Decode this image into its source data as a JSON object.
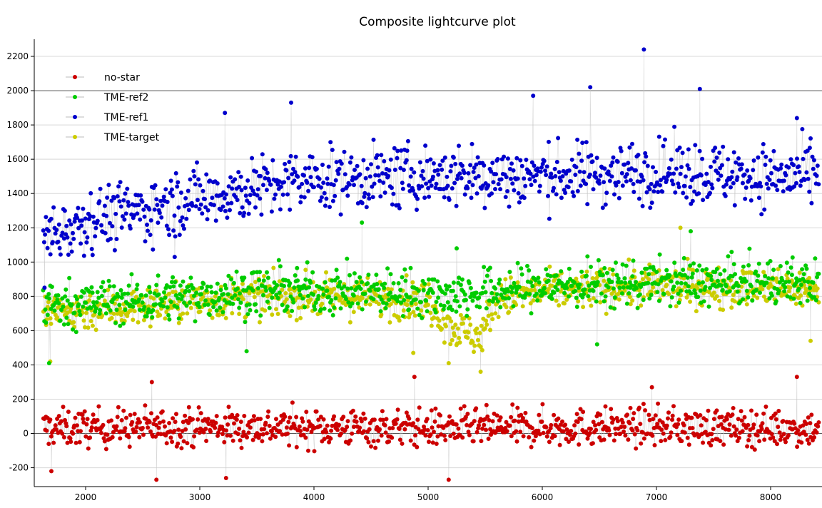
{
  "chart_data": {
    "type": "scatter",
    "title": "Composite lightcurve plot",
    "xlabel": "",
    "ylabel": "",
    "xlim": [
      1550,
      8450
    ],
    "ylim": [
      -310,
      2300
    ],
    "x_ticks": [
      2000,
      3000,
      4000,
      5000,
      6000,
      7000,
      8000
    ],
    "y_ticks": [
      -200,
      0,
      200,
      400,
      600,
      800,
      1000,
      1200,
      1400,
      1600,
      1800,
      2000,
      2200
    ],
    "grid": true,
    "legend_position": "top-left",
    "x_range_data": [
      1630,
      8420
    ],
    "series": [
      {
        "name": "no-star",
        "color": "#cc0000",
        "trend": [
          [
            1630,
            30
          ],
          [
            3000,
            40
          ],
          [
            5000,
            30
          ],
          [
            7000,
            40
          ],
          [
            8420,
            30
          ]
        ],
        "spread": 90,
        "extremes": [
          [
            2580,
            300
          ],
          [
            2620,
            -270
          ],
          [
            3230,
            -260
          ],
          [
            4880,
            330
          ],
          [
            5180,
            -270
          ],
          [
            8230,
            330
          ],
          [
            6960,
            270
          ],
          [
            1700,
            -220
          ]
        ]
      },
      {
        "name": "TME-ref2",
        "color": "#00cc00",
        "trend": [
          [
            1630,
            750
          ],
          [
            2500,
            780
          ],
          [
            3500,
            830
          ],
          [
            4500,
            830
          ],
          [
            5300,
            810
          ],
          [
            6000,
            860
          ],
          [
            7000,
            880
          ],
          [
            8420,
            880
          ]
        ],
        "spread": 110,
        "extremes": [
          [
            1680,
            410
          ],
          [
            3410,
            480
          ],
          [
            4420,
            1230
          ],
          [
            6480,
            520
          ],
          [
            7300,
            1180
          ],
          [
            5250,
            1080
          ]
        ]
      },
      {
        "name": "TME-ref1",
        "color": "#0000cc",
        "trend": [
          [
            1630,
            1150
          ],
          [
            2000,
            1250
          ],
          [
            2500,
            1300
          ],
          [
            3000,
            1380
          ],
          [
            3500,
            1430
          ],
          [
            4000,
            1480
          ],
          [
            5000,
            1500
          ],
          [
            6000,
            1500
          ],
          [
            7000,
            1530
          ],
          [
            8000,
            1500
          ],
          [
            8420,
            1500
          ]
        ],
        "spread": 150,
        "extremes": [
          [
            6890,
            2240
          ],
          [
            6420,
            2020
          ],
          [
            7380,
            2010
          ],
          [
            3220,
            1870
          ],
          [
            3800,
            1930
          ],
          [
            5920,
            1970
          ],
          [
            8230,
            1840
          ],
          [
            1640,
            850
          ],
          [
            2780,
            1030
          ]
        ]
      },
      {
        "name": "TME-target",
        "color": "#cccc00",
        "trend": [
          [
            1630,
            700
          ],
          [
            2500,
            740
          ],
          [
            3500,
            800
          ],
          [
            4500,
            790
          ],
          [
            5000,
            780
          ],
          [
            5200,
            620
          ],
          [
            5450,
            560
          ],
          [
            5600,
            780
          ],
          [
            6000,
            830
          ],
          [
            7000,
            860
          ],
          [
            8420,
            840
          ]
        ],
        "spread": 95,
        "extremes": [
          [
            5460,
            360
          ],
          [
            5180,
            410
          ],
          [
            4870,
            470
          ],
          [
            1690,
            420
          ],
          [
            7210,
            1200
          ],
          [
            8350,
            540
          ]
        ]
      }
    ]
  }
}
